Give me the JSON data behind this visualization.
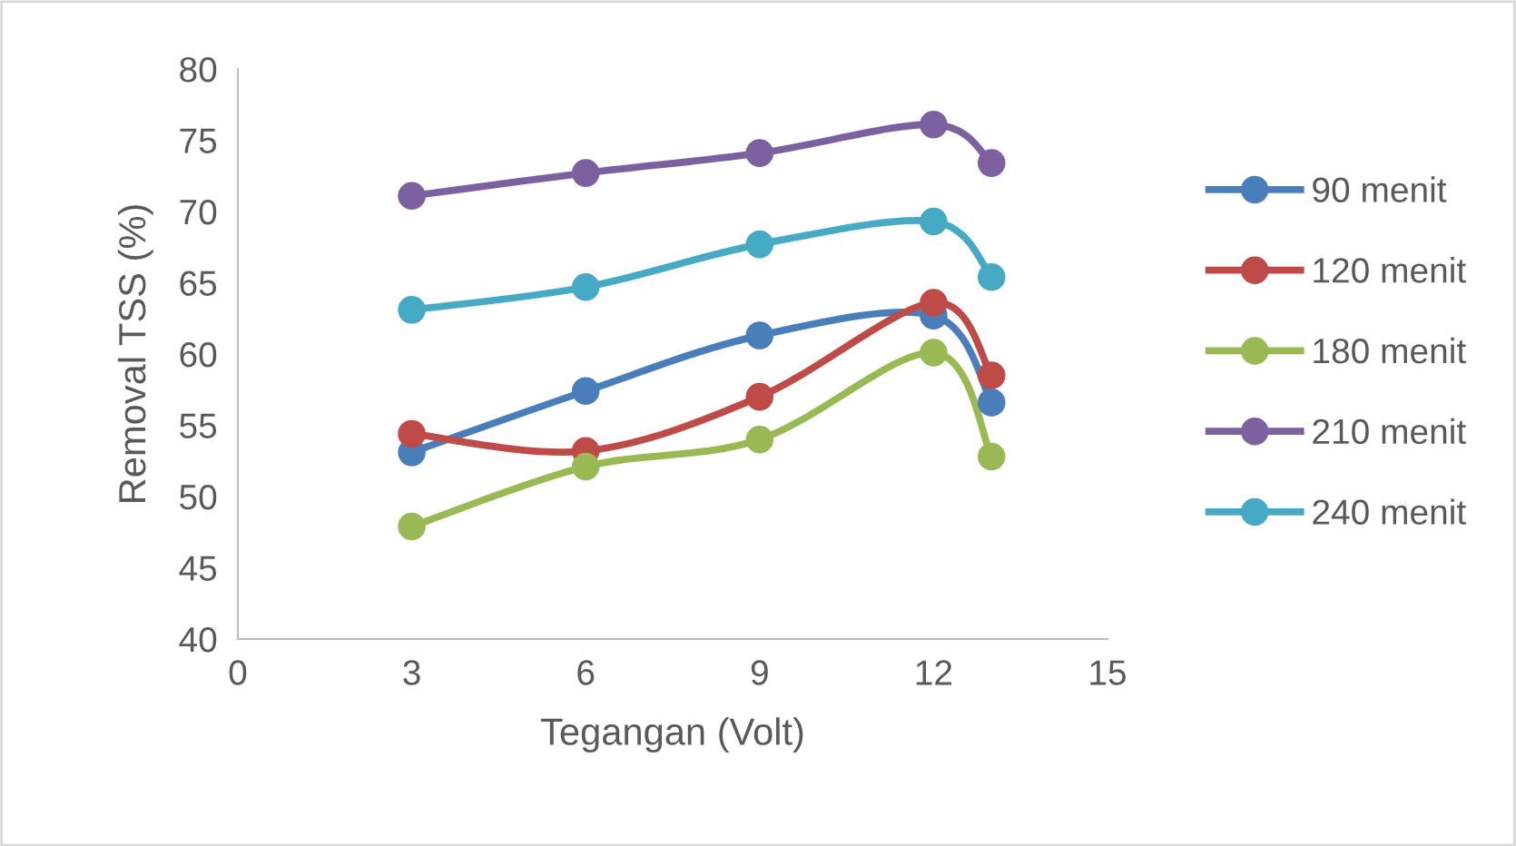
{
  "chart_data": {
    "type": "line",
    "xlabel": "Tegangan (Volt)",
    "ylabel": "Removal TSS (%)",
    "x": [
      3,
      6,
      9,
      12,
      13
    ],
    "series": [
      {
        "name": "90 menit",
        "color": "#4a7ebb",
        "values": [
          53.1,
          57.4,
          61.3,
          62.7,
          56.6
        ]
      },
      {
        "name": "120 menit",
        "color": "#be4b48",
        "values": [
          54.4,
          53.2,
          57.0,
          63.6,
          58.5
        ]
      },
      {
        "name": "180 menit",
        "color": "#98b954",
        "values": [
          47.9,
          52.1,
          54.0,
          60.1,
          52.8
        ]
      },
      {
        "name": "210 menit",
        "color": "#7d60a0",
        "values": [
          71.1,
          72.7,
          74.1,
          76.1,
          73.4
        ]
      },
      {
        "name": "240 menit",
        "color": "#46aac5",
        "values": [
          63.1,
          64.7,
          67.7,
          69.3,
          65.4
        ]
      }
    ],
    "xlim": [
      0,
      15
    ],
    "xticks": [
      0,
      3,
      6,
      9,
      12,
      15
    ],
    "ylim": [
      40,
      80
    ],
    "yticks": [
      40,
      45,
      50,
      55,
      60,
      65,
      70,
      75,
      80
    ],
    "grid": false,
    "legend": "right",
    "marker": "circle",
    "line_style": "solid"
  }
}
